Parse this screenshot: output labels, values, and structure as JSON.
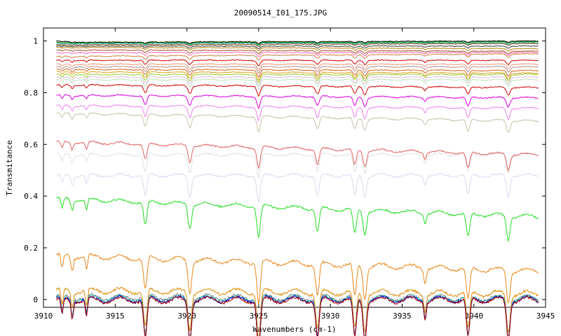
{
  "chart_data": {
    "type": "line",
    "title": "20090514_I01_175.JPG",
    "xlabel": "Wavenumbers (cm-1)",
    "ylabel": "Transmitance",
    "xlim": [
      3910,
      3945
    ],
    "ylim": [
      -0.03,
      1.05
    ],
    "xticks": [
      3910,
      3915,
      3920,
      3925,
      3930,
      3935,
      3940,
      3945
    ],
    "yticks": [
      0,
      0.2,
      0.4,
      0.6,
      0.8,
      1
    ],
    "grid": false,
    "legend": "none",
    "absorption_lines": [
      3911.3,
      3912.0,
      3913.0,
      3917.1,
      3920.2,
      3925.0,
      3929.1,
      3931.7,
      3932.4,
      3936.6,
      3939.6,
      3942.4
    ],
    "series": [
      {
        "color": "#e0e0e0",
        "values": [
          [
            3910.9,
            0.56
          ],
          [
            3945,
            0.56
          ]
        ],
        "x": [
          3910.9,
          3945
        ],
        "y": [
          0.56,
          0.56
        ]
      },
      {
        "color": "#d9d9ef",
        "x": [
          3910.9,
          3945
        ],
        "y": [
          0.48,
          0.48
        ]
      },
      {
        "color": "#000000",
        "x": [
          3910.9,
          3912.5,
          3944.5
        ],
        "y": [
          1.0,
          0.995,
          1.0
        ]
      },
      {
        "color": "#008000",
        "x": [
          3910.9,
          3912.5,
          3944.5
        ],
        "y": [
          0.995,
          0.992,
          0.997
        ]
      },
      {
        "color": "#20b2aa",
        "x": [
          3910.9,
          3912.5,
          3944.5
        ],
        "y": [
          0.99,
          0.99,
          0.993
        ]
      },
      {
        "color": "#8b4513",
        "x": [
          3910.9,
          3944.5
        ],
        "y": [
          0.985,
          0.99
        ]
      },
      {
        "color": "#404040",
        "x": [
          3910.9,
          3944.5
        ],
        "y": [
          0.98,
          0.98
        ]
      },
      {
        "color": "#b8860b",
        "x": [
          3910.9,
          3944.5
        ],
        "y": [
          0.975,
          0.97
        ]
      },
      {
        "color": "#a0522d",
        "x": [
          3910.9,
          3944.5
        ],
        "y": [
          0.965,
          0.96
        ]
      },
      {
        "color": "#ff69b4",
        "x": [
          3910.9,
          3944.5
        ],
        "y": [
          0.955,
          0.955
        ]
      },
      {
        "color": "#cd853f",
        "x": [
          3910.9,
          3944.5
        ],
        "y": [
          0.94,
          0.95
        ]
      },
      {
        "color": "#d00000",
        "x": [
          3910.9,
          3944.5
        ],
        "y": [
          0.925,
          0.925
        ]
      },
      {
        "color": "#e9967a",
        "x": [
          3910.9,
          3944.5
        ],
        "y": [
          0.91,
          0.91
        ]
      },
      {
        "color": "#bc8f8f",
        "x": [
          3910.9,
          3944.5
        ],
        "y": [
          0.9,
          0.9
        ]
      },
      {
        "color": "#d2691e",
        "x": [
          3910.9,
          3944.5
        ],
        "y": [
          0.89,
          0.885
        ]
      },
      {
        "color": "#daa520",
        "x": [
          3910.9,
          3944.5
        ],
        "y": [
          0.88,
          0.875
        ]
      },
      {
        "color": "#9acd32",
        "x": [
          3910.9,
          3944.5
        ],
        "y": [
          0.87,
          0.87
        ]
      },
      {
        "color": "#d8bfd8",
        "x": [
          3910.9,
          3944.5
        ],
        "y": [
          0.86,
          0.86
        ]
      },
      {
        "color": "#c0e0c0",
        "x": [
          3910.9,
          3944.5
        ],
        "y": [
          0.85,
          0.85
        ]
      },
      {
        "color": "#cc0000",
        "x": [
          3910.9,
          3944.5
        ],
        "y": [
          0.83,
          0.82
        ]
      },
      {
        "color": "#dd00dd",
        "x": [
          3910.9,
          3944.5
        ],
        "y": [
          0.79,
          0.78
        ]
      },
      {
        "color": "#ee82ee",
        "x": [
          3910.9,
          3944.5
        ],
        "y": [
          0.75,
          0.74
        ]
      },
      {
        "color": "#c8c0a8",
        "x": [
          3910.9,
          3944.5
        ],
        "y": [
          0.72,
          0.69
        ]
      },
      {
        "color": "#e06060",
        "x": [
          3910.9,
          3944.5
        ],
        "y": [
          0.61,
          0.56
        ]
      },
      {
        "color": "#22dd22",
        "x": [
          3910.9,
          3944.5
        ],
        "y": [
          0.39,
          0.32
        ]
      },
      {
        "color": "#e8861a",
        "x": [
          3910.9,
          3944.5
        ],
        "y": [
          0.17,
          0.11
        ]
      },
      {
        "color": "#dd8800",
        "x": [
          3910.9,
          3944.5
        ],
        "y": [
          0.035,
          0.022
        ]
      },
      {
        "color": "#888888",
        "x": [
          3910.9,
          3944.5
        ],
        "y": [
          0.01,
          0.005
        ]
      },
      {
        "color": "#20b2aa",
        "x": [
          3910.9,
          3944.5
        ],
        "y": [
          0.005,
          0.003
        ]
      },
      {
        "color": "#0000cc",
        "x": [
          3910.9,
          3944.5
        ],
        "y": [
          0.0,
          0.0
        ]
      },
      {
        "color": "#aa0000",
        "x": [
          3910.9,
          3944.5
        ],
        "y": [
          -0.003,
          -0.002
        ]
      }
    ]
  }
}
